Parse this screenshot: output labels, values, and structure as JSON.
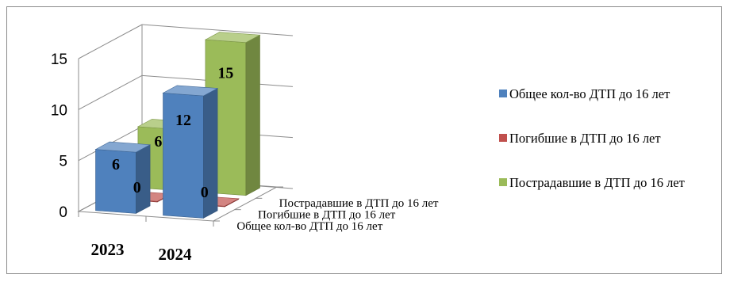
{
  "chart_data": {
    "type": "bar",
    "style": "3d-column",
    "categories": [
      "2023",
      "2024"
    ],
    "series": [
      {
        "name": "Общее кол-во ДТП до 16 лет",
        "values": [
          6,
          12
        ],
        "color": "#4f81bd"
      },
      {
        "name": "Погибшие в ДТП до 16 лет",
        "values": [
          0,
          0
        ],
        "color": "#c0504d"
      },
      {
        "name": "Пострадавшие в ДТП до 16 лет",
        "values": [
          6,
          15
        ],
        "color": "#9bbb59"
      }
    ],
    "depth_labels": [
      "Общее кол-во ДТП до 16 лет",
      "Погибшие в ДТП до 16 лет",
      "Пострадавшие в ДТП до 16 лет"
    ],
    "y_ticks": [
      "0",
      "5",
      "10",
      "15"
    ],
    "ylim": [
      0,
      15
    ],
    "gridlines": true,
    "data_labels": true,
    "legend_position": "right",
    "title": "",
    "xlabel": "",
    "ylabel": ""
  },
  "legend": {
    "items": [
      {
        "label": "Общее кол-во ДТП до 16 лет",
        "color": "#4f81bd"
      },
      {
        "label": "Погибшие в ДТП до 16 лет",
        "color": "#c0504d"
      },
      {
        "label": "Пострадавшие в ДТП до 16 лет",
        "color": "#9bbb59"
      }
    ]
  }
}
